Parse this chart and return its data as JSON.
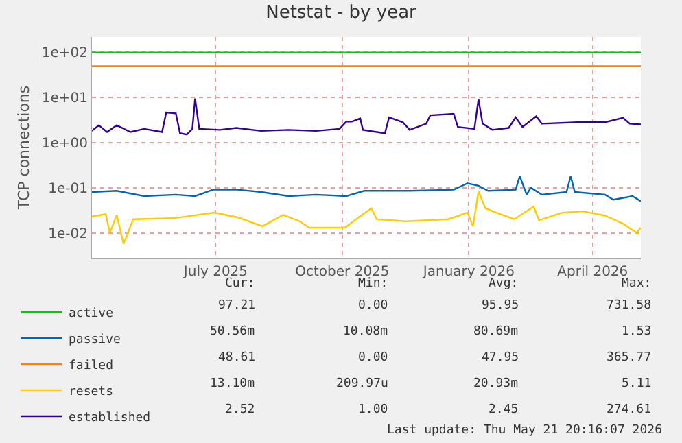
{
  "chart_data": {
    "type": "line",
    "title": "Netstat - by year",
    "ylabel": "TCP connections",
    "log": "y",
    "grid": true,
    "legend": "bottom left",
    "marker": "none",
    "line_style": "solid",
    "xlim": [
      "2025-04-17",
      "2026-05-21"
    ],
    "xticks": [
      {
        "value": "2025-07-16",
        "label": "July 2025"
      },
      {
        "value": "2025-10-16",
        "label": "October 2025"
      },
      {
        "value": "2026-01-16",
        "label": "January 2026"
      },
      {
        "value": "2026-04-16",
        "label": "April 2026"
      }
    ],
    "ylim": [
      0.0028,
      215
    ],
    "yticks": [
      {
        "value": 0.01,
        "label": "1e-02"
      },
      {
        "value": 0.1,
        "label": "1e-01"
      },
      {
        "value": 1,
        "label": "1e+00"
      },
      {
        "value": 10,
        "label": "1e+01"
      },
      {
        "value": 100,
        "label": "1e+02"
      }
    ],
    "series": [
      {
        "name": "active",
        "color": "#00cc00",
        "x": [
          "2025-04-17",
          "2025-08-01",
          "2025-12-01",
          "2026-05-21"
        ],
        "values": [
          97,
          97,
          97,
          97
        ]
      },
      {
        "name": "passive",
        "color": "#0066b3",
        "x": [
          "2025-04-17",
          "2025-05-05",
          "2025-05-25",
          "2025-06-17",
          "2025-07-01",
          "2025-07-14",
          "2025-08-01",
          "2025-08-18",
          "2025-09-07",
          "2025-09-27",
          "2025-10-19",
          "2025-11-01",
          "2025-12-04",
          "2026-01-05",
          "2026-01-15",
          "2026-01-23",
          "2026-01-30",
          "2026-02-19",
          "2026-02-22",
          "2026-02-27",
          "2026-03-02",
          "2026-03-10",
          "2026-03-28",
          "2026-03-31",
          "2026-04-03",
          "2026-04-25",
          "2026-05-01",
          "2026-05-15",
          "2026-05-21"
        ],
        "values": [
          0.08,
          0.085,
          0.065,
          0.07,
          0.065,
          0.09,
          0.09,
          0.08,
          0.065,
          0.07,
          0.065,
          0.085,
          0.085,
          0.09,
          0.125,
          0.11,
          0.085,
          0.09,
          0.18,
          0.07,
          0.1,
          0.07,
          0.08,
          0.18,
          0.08,
          0.07,
          0.054,
          0.065,
          0.05
        ]
      },
      {
        "name": "failed",
        "color": "#ff8000",
        "x": [
          "2025-04-17",
          "2025-08-01",
          "2025-12-01",
          "2026-05-21"
        ],
        "values": [
          48.6,
          48.6,
          48.6,
          48.6
        ]
      },
      {
        "name": "resets",
        "color": "#ffcc00",
        "x": [
          "2025-04-17",
          "2025-04-27",
          "2025-04-30",
          "2025-05-05",
          "2025-05-08",
          "2025-05-10",
          "2025-05-17",
          "2025-06-15",
          "2025-07-15",
          "2025-08-01",
          "2025-08-19",
          "2025-09-03",
          "2025-09-15",
          "2025-09-22",
          "2025-10-18",
          "2025-10-26",
          "2025-11-06",
          "2025-11-10",
          "2025-12-01",
          "2026-01-01",
          "2026-01-15",
          "2026-01-19",
          "2026-01-23",
          "2026-01-28",
          "2026-02-05",
          "2026-02-18",
          "2026-03-04",
          "2026-03-08",
          "2026-03-25",
          "2026-04-09",
          "2026-04-25",
          "2026-05-08",
          "2026-05-18",
          "2026-05-21"
        ],
        "values": [
          0.023,
          0.026,
          0.01,
          0.025,
          0.01,
          0.0057,
          0.02,
          0.021,
          0.028,
          0.022,
          0.014,
          0.025,
          0.018,
          0.013,
          0.013,
          0.02,
          0.035,
          0.02,
          0.018,
          0.02,
          0.028,
          0.014,
          0.083,
          0.035,
          0.028,
          0.02,
          0.038,
          0.019,
          0.028,
          0.03,
          0.024,
          0.016,
          0.01,
          0.013
        ]
      },
      {
        "name": "established",
        "color": "#330099",
        "x": [
          "2025-04-17",
          "2025-04-22",
          "2025-04-28",
          "2025-05-05",
          "2025-05-15",
          "2025-05-25",
          "2025-06-07",
          "2025-06-10",
          "2025-06-17",
          "2025-06-20",
          "2025-06-25",
          "2025-06-29",
          "2025-07-01",
          "2025-07-04",
          "2025-07-19",
          "2025-07-31",
          "2025-08-18",
          "2025-09-07",
          "2025-09-27",
          "2025-10-14",
          "2025-10-19",
          "2025-10-23",
          "2025-10-29",
          "2025-10-31",
          "2025-11-16",
          "2025-11-19",
          "2025-11-29",
          "2025-12-04",
          "2025-12-16",
          "2025-12-19",
          "2026-01-05",
          "2026-01-08",
          "2026-01-20",
          "2026-01-23",
          "2026-01-26",
          "2026-02-02",
          "2026-02-14",
          "2026-02-19",
          "2026-02-24",
          "2026-03-06",
          "2026-03-10",
          "2026-04-05",
          "2026-04-25",
          "2026-05-08",
          "2026-05-13",
          "2026-05-21"
        ],
        "values": [
          1.8,
          2.4,
          1.7,
          2.4,
          1.7,
          2.0,
          1.7,
          4.6,
          4.4,
          1.6,
          1.5,
          2.0,
          9.4,
          2.0,
          1.9,
          2.1,
          1.8,
          1.9,
          1.8,
          2.0,
          2.9,
          2.9,
          3.4,
          1.9,
          1.6,
          3.6,
          2.8,
          1.9,
          2.6,
          4.0,
          4.3,
          2.2,
          2.0,
          9.0,
          2.6,
          1.9,
          2.1,
          3.6,
          2.2,
          3.8,
          2.6,
          2.8,
          2.8,
          3.5,
          2.6,
          2.5
        ]
      }
    ],
    "annotations": [
      "Cur:",
      "Min:",
      "Avg:",
      "Max:",
      "97.21",
      "0.00",
      "95.95",
      "731.58",
      "50.56m",
      "10.08m",
      "80.69m",
      "1.53",
      "48.61",
      "0.00",
      "47.95",
      "365.77",
      "13.10m",
      "209.97u",
      "20.93m",
      "5.11",
      "2.52",
      "1.00",
      "2.45",
      "274.61",
      "Last update: Thu May 21 20:16:07 2026"
    ]
  }
}
